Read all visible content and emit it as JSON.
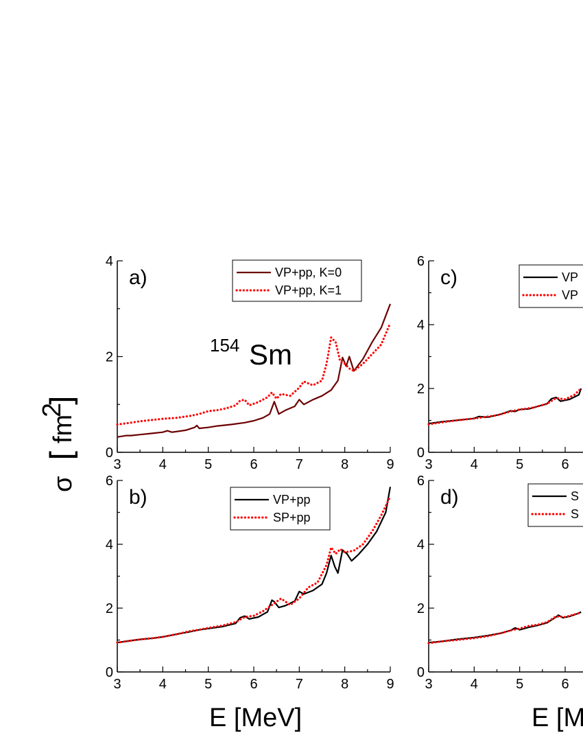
{
  "colors": {
    "dark_red": "#6b0000",
    "red": "#ff0000",
    "black": "#000000"
  },
  "labels": {
    "x_title": "E [MeV]",
    "x_title_right": "E [M",
    "y_sigma": "σ",
    "y_unit": "fm",
    "y_unit_exp": "2",
    "nucleus_mass": "154",
    "nucleus_symbol": "Sm"
  },
  "chart_data": [
    {
      "id": "a",
      "type": "line",
      "panel_label": "a)",
      "xlim": [
        3,
        9
      ],
      "ylim": [
        0,
        4
      ],
      "xticks": [
        3,
        4,
        5,
        6,
        7,
        8,
        9
      ],
      "xticklabels": [
        "3",
        "4",
        "5",
        "6",
        "7",
        "8",
        "9"
      ],
      "yticks": [
        0,
        2,
        4
      ],
      "yticklabels": [
        "0",
        "2",
        "4"
      ],
      "xlabel": "",
      "ylabel": "",
      "legend": [
        "VP+pp, K=0",
        "VP+pp, K=1"
      ],
      "series": [
        {
          "name": "VP+pp, K=0",
          "color": "#6b0000",
          "style": "solid",
          "x": [
            3.0,
            3.2,
            3.3,
            3.5,
            3.8,
            4.0,
            4.1,
            4.2,
            4.5,
            4.7,
            4.75,
            4.8,
            5.0,
            5.2,
            5.5,
            5.8,
            6.0,
            6.2,
            6.35,
            6.45,
            6.55,
            6.7,
            6.9,
            7.0,
            7.1,
            7.3,
            7.5,
            7.7,
            7.85,
            7.95,
            8.03,
            8.1,
            8.2,
            8.4,
            8.6,
            8.8,
            9.0
          ],
          "y": [
            0.32,
            0.35,
            0.35,
            0.37,
            0.4,
            0.42,
            0.45,
            0.42,
            0.46,
            0.52,
            0.56,
            0.5,
            0.52,
            0.55,
            0.58,
            0.62,
            0.66,
            0.72,
            0.8,
            1.06,
            0.8,
            0.88,
            0.96,
            1.1,
            1.0,
            1.1,
            1.18,
            1.3,
            1.5,
            1.98,
            1.8,
            2.0,
            1.7,
            1.95,
            2.3,
            2.6,
            3.1
          ]
        },
        {
          "name": "VP+pp, K=1",
          "color": "#ff0000",
          "style": "dotted",
          "x": [
            3.0,
            3.3,
            3.5,
            3.8,
            4.0,
            4.3,
            4.6,
            4.8,
            5.0,
            5.2,
            5.4,
            5.6,
            5.7,
            5.8,
            5.9,
            6.1,
            6.3,
            6.4,
            6.5,
            6.6,
            6.8,
            7.0,
            7.1,
            7.3,
            7.5,
            7.6,
            7.7,
            7.8,
            7.9,
            8.0,
            8.1,
            8.2,
            8.4,
            8.6,
            8.8,
            9.0
          ],
          "y": [
            0.58,
            0.62,
            0.65,
            0.68,
            0.7,
            0.72,
            0.76,
            0.8,
            0.86,
            0.88,
            0.92,
            0.98,
            1.08,
            1.1,
            0.98,
            1.05,
            1.15,
            1.25,
            1.12,
            1.22,
            1.18,
            1.35,
            1.48,
            1.4,
            1.5,
            1.85,
            2.4,
            2.3,
            1.9,
            1.85,
            1.75,
            1.7,
            1.85,
            2.05,
            2.25,
            2.7
          ]
        }
      ]
    },
    {
      "id": "b",
      "type": "line",
      "panel_label": "b)",
      "xlim": [
        3,
        9
      ],
      "ylim": [
        0,
        6
      ],
      "xticks": [
        3,
        4,
        5,
        6,
        7,
        8,
        9
      ],
      "xticklabels": [
        "3",
        "4",
        "5",
        "6",
        "7",
        "8",
        "9"
      ],
      "yticks": [
        0,
        2,
        4,
        6
      ],
      "yticklabels": [
        "0",
        "2",
        "4",
        "6"
      ],
      "xlabel": "E [MeV]",
      "ylabel": "",
      "legend": [
        "VP+pp",
        "SP+pp"
      ],
      "series": [
        {
          "name": "VP+pp",
          "color": "#000000",
          "style": "solid",
          "x": [
            3.0,
            3.3,
            3.5,
            3.8,
            4.0,
            4.3,
            4.6,
            4.8,
            5.0,
            5.3,
            5.6,
            5.7,
            5.8,
            5.9,
            6.1,
            6.3,
            6.4,
            6.45,
            6.55,
            6.7,
            6.9,
            7.0,
            7.1,
            7.3,
            7.5,
            7.6,
            7.7,
            7.78,
            7.85,
            7.95,
            8.05,
            8.15,
            8.3,
            8.5,
            8.7,
            8.9,
            9.0
          ],
          "y": [
            0.92,
            0.98,
            1.02,
            1.06,
            1.1,
            1.18,
            1.26,
            1.32,
            1.36,
            1.42,
            1.52,
            1.7,
            1.75,
            1.66,
            1.72,
            1.88,
            2.25,
            2.2,
            2.02,
            2.08,
            2.22,
            2.52,
            2.44,
            2.55,
            2.75,
            3.1,
            3.65,
            3.3,
            3.1,
            3.82,
            3.7,
            3.48,
            3.68,
            4.0,
            4.4,
            5.0,
            5.8
          ]
        },
        {
          "name": "SP+pp",
          "color": "#ff0000",
          "style": "dotted",
          "x": [
            3.0,
            3.3,
            3.5,
            3.8,
            4.0,
            4.3,
            4.6,
            4.8,
            5.0,
            5.3,
            5.6,
            5.8,
            6.0,
            6.2,
            6.4,
            6.6,
            6.8,
            7.0,
            7.2,
            7.4,
            7.6,
            7.7,
            7.8,
            7.9,
            8.0,
            8.2,
            8.4,
            8.6,
            8.8,
            9.0
          ],
          "y": [
            0.92,
            0.98,
            1.02,
            1.06,
            1.1,
            1.18,
            1.28,
            1.32,
            1.38,
            1.45,
            1.56,
            1.72,
            1.76,
            1.9,
            2.1,
            2.3,
            2.1,
            2.3,
            2.65,
            2.8,
            3.35,
            3.9,
            3.7,
            3.85,
            3.75,
            3.8,
            4.0,
            4.4,
            4.9,
            5.5
          ]
        }
      ]
    },
    {
      "id": "c",
      "type": "line",
      "panel_label": "c)",
      "xlim": [
        3,
        9
      ],
      "ylim": [
        0,
        6
      ],
      "xticks": [
        3,
        4,
        5,
        6
      ],
      "xticklabels": [
        "3",
        "4",
        "5",
        "6"
      ],
      "yticks": [
        0,
        2,
        4,
        6
      ],
      "yticklabels": [
        "0",
        "2",
        "4",
        "6"
      ],
      "xlabel": "",
      "ylabel": "",
      "legend": [
        "VP",
        "VP"
      ],
      "series": [
        {
          "name": "VP",
          "color": "#000000",
          "style": "solid",
          "x": [
            3.0,
            3.3,
            3.6,
            4.0,
            4.1,
            4.3,
            4.6,
            4.8,
            4.9,
            5.0,
            5.2,
            5.4,
            5.6,
            5.7,
            5.8,
            5.9,
            6.1,
            6.3,
            6.35
          ],
          "y": [
            0.9,
            0.96,
            1.0,
            1.06,
            1.12,
            1.1,
            1.2,
            1.3,
            1.28,
            1.34,
            1.36,
            1.44,
            1.52,
            1.68,
            1.72,
            1.6,
            1.66,
            1.8,
            2.0
          ]
        },
        {
          "name": "VP",
          "color": "#ff0000",
          "style": "dotted",
          "x": [
            3.0,
            3.3,
            3.6,
            4.0,
            4.2,
            4.5,
            4.8,
            5.0,
            5.3,
            5.6,
            5.8,
            6.0,
            6.2,
            6.35
          ],
          "y": [
            0.88,
            0.94,
            1.0,
            1.06,
            1.1,
            1.16,
            1.28,
            1.34,
            1.4,
            1.52,
            1.7,
            1.66,
            1.8,
            2.0
          ]
        }
      ]
    },
    {
      "id": "d",
      "type": "line",
      "panel_label": "d)",
      "xlim": [
        3,
        9
      ],
      "ylim": [
        0,
        6
      ],
      "xticks": [
        3,
        4,
        5,
        6
      ],
      "xticklabels": [
        "3",
        "4",
        "5",
        "6"
      ],
      "yticks": [
        0,
        2,
        4,
        6
      ],
      "yticklabels": [
        "0",
        "2",
        "4",
        "6"
      ],
      "xlabel": "E [M",
      "ylabel": "",
      "legend": [
        "S",
        "S"
      ],
      "series": [
        {
          "name": "S",
          "color": "#000000",
          "style": "solid",
          "x": [
            3.0,
            3.3,
            3.6,
            4.0,
            4.3,
            4.6,
            4.8,
            4.9,
            5.0,
            5.2,
            5.4,
            5.6,
            5.8,
            5.85,
            5.95,
            6.1,
            6.3,
            6.35
          ],
          "y": [
            0.92,
            0.96,
            1.02,
            1.08,
            1.14,
            1.22,
            1.3,
            1.38,
            1.32,
            1.4,
            1.46,
            1.54,
            1.72,
            1.78,
            1.7,
            1.74,
            1.84,
            1.88
          ]
        },
        {
          "name": "S",
          "color": "#ff0000",
          "style": "dotted",
          "x": [
            3.0,
            3.3,
            3.6,
            4.0,
            4.3,
            4.6,
            4.8,
            5.0,
            5.2,
            5.4,
            5.6,
            5.8,
            6.0,
            6.2,
            6.35
          ],
          "y": [
            0.9,
            0.96,
            1.0,
            1.06,
            1.12,
            1.22,
            1.3,
            1.36,
            1.44,
            1.48,
            1.56,
            1.74,
            1.72,
            1.8,
            1.86
          ]
        }
      ]
    }
  ]
}
